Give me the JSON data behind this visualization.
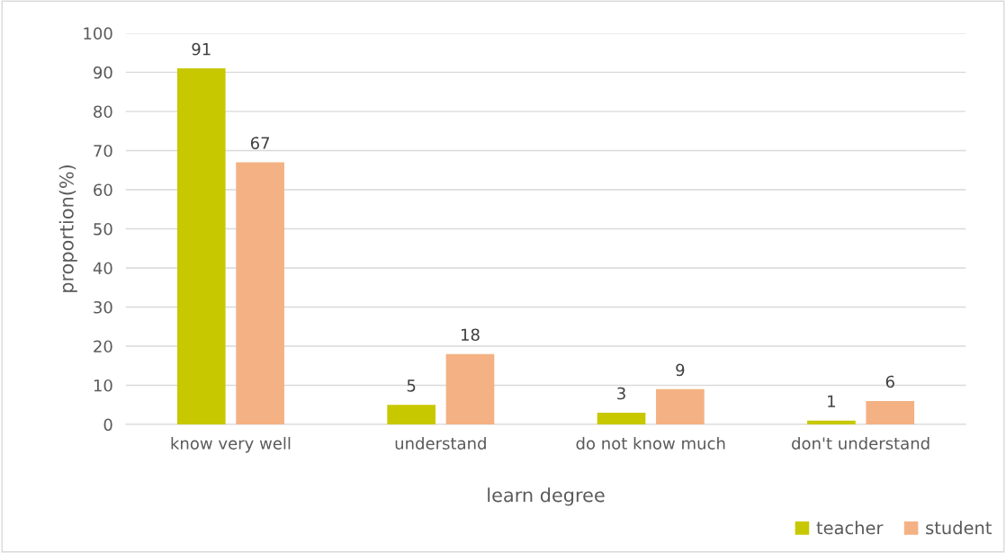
{
  "chart_data": {
    "type": "bar",
    "xlabel": "learn degree",
    "ylabel": "proportion(%)",
    "categories": [
      "know very well",
      "understand",
      "do not know much",
      "don't understand"
    ],
    "series": [
      {
        "name": "teacher",
        "color": "#c8c800",
        "values": [
          91,
          5,
          3,
          1
        ]
      },
      {
        "name": "student",
        "color": "#f4b183",
        "values": [
          67,
          18,
          9,
          6
        ]
      }
    ],
    "ylim": [
      0,
      100
    ],
    "yticks": [
      0,
      10,
      20,
      30,
      40,
      50,
      60,
      70,
      80,
      90,
      100
    ],
    "grid": "y",
    "legend": "bottom right",
    "data_labels": true
  }
}
